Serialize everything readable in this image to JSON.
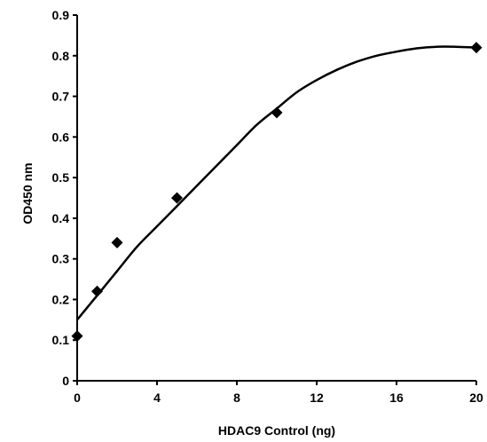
{
  "chart_data": {
    "type": "scatter",
    "title": "",
    "xlabel": "HDAC9 Control (ng)",
    "ylabel": "OD450 nm",
    "xlim": [
      0,
      20
    ],
    "ylim": [
      0,
      0.9
    ],
    "x_ticks": [
      0,
      4,
      8,
      12,
      16,
      20
    ],
    "x_tick_labels": [
      "0",
      "4",
      "8",
      "12",
      "16",
      "20"
    ],
    "y_ticks": [
      0,
      0.1,
      0.2,
      0.3,
      0.4,
      0.5,
      0.6,
      0.7,
      0.8,
      0.9
    ],
    "y_tick_labels": [
      "0",
      "0.1",
      "0.2",
      "0.3",
      "0.4",
      "0.5",
      "0.6",
      "0.7",
      "0.8",
      "0.9"
    ],
    "grid": false,
    "legend": "none",
    "series": [
      {
        "marker": "diamond",
        "x": [
          0,
          1,
          2,
          5,
          10,
          20
        ],
        "y": [
          0.11,
          0.22,
          0.34,
          0.45,
          0.66,
          0.82
        ]
      }
    ],
    "fit_curve": {
      "style": "smooth line",
      "x": [
        0,
        1,
        2,
        3,
        4,
        5,
        6,
        7,
        8,
        9,
        10,
        11,
        12,
        13,
        14,
        15,
        16,
        17,
        18,
        19,
        20
      ],
      "y": [
        0.15,
        0.21,
        0.27,
        0.33,
        0.38,
        0.43,
        0.48,
        0.53,
        0.58,
        0.63,
        0.67,
        0.71,
        0.74,
        0.765,
        0.785,
        0.8,
        0.81,
        0.818,
        0.822,
        0.822,
        0.82
      ]
    },
    "colors": {
      "marker": "#000000",
      "line": "#000000",
      "axes": "#000000"
    }
  }
}
